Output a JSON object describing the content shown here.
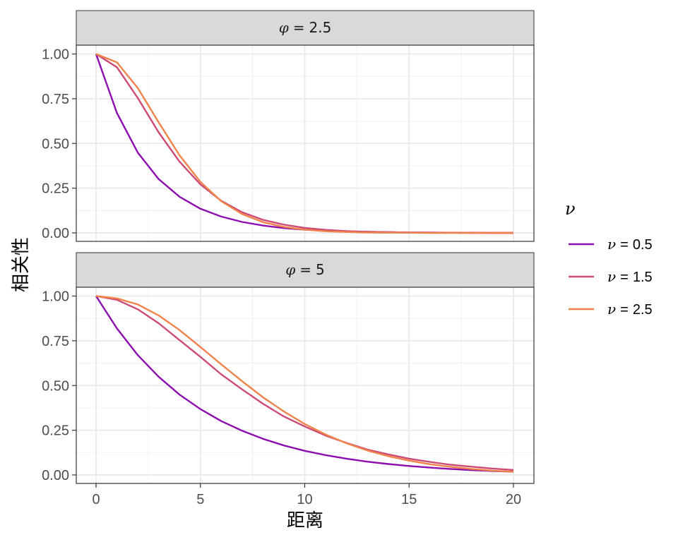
{
  "chart_data": {
    "type": "line",
    "xlabel": "距离",
    "ylabel": "相关性",
    "xlim": [
      0,
      20
    ],
    "ylim": [
      0,
      1
    ],
    "x_ticks": [
      "0",
      "5",
      "10",
      "15",
      "20"
    ],
    "y_ticks": [
      "0.00",
      "0.25",
      "0.50",
      "0.75",
      "1.00"
    ],
    "grid": true,
    "legend": {
      "title": "ν",
      "position": "right",
      "entries": [
        {
          "symbol": "ν",
          "eq": "=",
          "value": "0.5",
          "color": "#8c0eae"
        },
        {
          "symbol": "ν",
          "eq": "=",
          "value": "1.5",
          "color": "#cd4a76"
        },
        {
          "symbol": "ν",
          "eq": "=",
          "value": "2.5",
          "color": "#f0834a"
        }
      ]
    },
    "panels": [
      {
        "strip": {
          "symbol": "φ",
          "eq": "=",
          "value": "2.5"
        },
        "phi": 2.5,
        "x": [
          0,
          1,
          2,
          3,
          4,
          5,
          6,
          7,
          8,
          9,
          10,
          11,
          12,
          13,
          14,
          15,
          16,
          17,
          18,
          19,
          20
        ],
        "series": [
          {
            "name": "ν = 0.5",
            "values": [
              1.0,
              0.67,
              0.449,
              0.301,
              0.202,
              0.135,
              0.091,
              0.061,
              0.041,
              0.027,
              0.018,
              0.012,
              0.008,
              0.006,
              0.004,
              0.002,
              0.002,
              0.001,
              0.001,
              0.0,
              0.0
            ]
          },
          {
            "name": "ν = 1.5",
            "values": [
              1.0,
              0.926,
              0.754,
              0.562,
              0.398,
              0.271,
              0.179,
              0.115,
              0.073,
              0.046,
              0.028,
              0.017,
              0.01,
              0.006,
              0.004,
              0.002,
              0.001,
              0.001,
              0.0,
              0.0,
              0.0
            ]
          },
          {
            "name": "ν = 2.5",
            "values": [
              1.0,
              0.953,
              0.81,
              0.618,
              0.434,
              0.285,
              0.177,
              0.105,
              0.06,
              0.033,
              0.018,
              0.009,
              0.005,
              0.002,
              0.001,
              0.001,
              0.0,
              0.0,
              0.0,
              0.0,
              0.0
            ]
          }
        ]
      },
      {
        "strip": {
          "symbol": "φ",
          "eq": "=",
          "value": "5"
        },
        "phi": 5,
        "x": [
          0,
          1,
          2,
          3,
          4,
          5,
          6,
          7,
          8,
          9,
          10,
          11,
          12,
          13,
          14,
          15,
          16,
          17,
          18,
          19,
          20
        ],
        "series": [
          {
            "name": "ν = 0.5",
            "values": [
              1.0,
              0.819,
              0.67,
              0.549,
              0.449,
              0.368,
              0.301,
              0.247,
              0.202,
              0.165,
              0.135,
              0.111,
              0.091,
              0.074,
              0.061,
              0.05,
              0.041,
              0.033,
              0.027,
              0.022,
              0.018
            ]
          },
          {
            "name": "ν = 1.5",
            "values": [
              1.0,
              0.979,
              0.926,
              0.848,
              0.754,
              0.66,
              0.562,
              0.478,
              0.398,
              0.327,
              0.271,
              0.22,
              0.179,
              0.142,
              0.115,
              0.091,
              0.073,
              0.057,
              0.046,
              0.036,
              0.028
            ]
          },
          {
            "name": "ν = 2.5",
            "values": [
              1.0,
              0.987,
              0.953,
              0.892,
              0.81,
              0.715,
              0.618,
              0.524,
              0.434,
              0.355,
              0.285,
              0.226,
              0.177,
              0.137,
              0.105,
              0.08,
              0.06,
              0.045,
              0.033,
              0.024,
              0.018
            ]
          }
        ]
      }
    ]
  }
}
